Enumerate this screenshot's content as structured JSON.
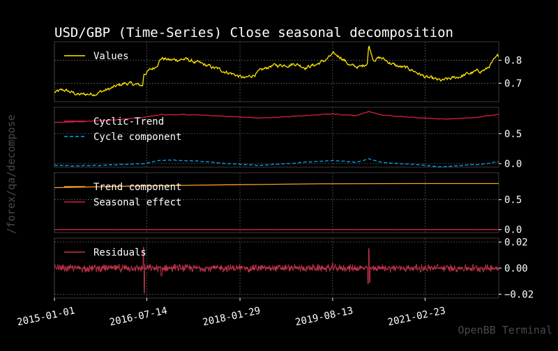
{
  "title": "USD/GBP (Time-Series) Close seasonal decomposition",
  "side_label": "/forex/qa/decompose",
  "watermark": "OpenBB Terminal",
  "colors": {
    "background": "#000000",
    "axes_frame": "#3a3a3a",
    "grid": "#5a5a5a",
    "text": "#ffffff",
    "muted_text": "#4a4a4a",
    "values": "#ffe600",
    "cyclic_trend": "#d81e42",
    "cycle": "#00a8f0",
    "trend": "#ff9e21",
    "seasonal": "#d81e42",
    "residuals": "#c8334a"
  },
  "chart_data": [
    {
      "type": "line",
      "panel": "values",
      "x_range": [
        "2015-01-01",
        "2022-05-15"
      ],
      "x_ticks": [
        "2015-01-01",
        "2016-07-14",
        "2018-01-29",
        "2019-08-13",
        "2021-02-23"
      ],
      "ylim": [
        0.62,
        0.88
      ],
      "y_ticks": [
        0.7,
        0.8
      ],
      "y_tick_labels": [
        "0.7",
        "0.8"
      ],
      "grid": true,
      "legend": "top-left",
      "series": [
        {
          "name": "Values",
          "style": "solid",
          "x": [
            "2015-01-01",
            "2015-03-01",
            "2015-06-01",
            "2015-09-01",
            "2015-12-01",
            "2016-03-01",
            "2016-06-20",
            "2016-06-24",
            "2016-09-01",
            "2016-10-10",
            "2016-12-01",
            "2017-03-01",
            "2017-06-01",
            "2017-09-01",
            "2017-12-01",
            "2018-03-01",
            "2018-05-15",
            "2018-08-01",
            "2018-11-01",
            "2019-01-01",
            "2019-03-01",
            "2019-05-01",
            "2019-07-01",
            "2019-08-13",
            "2019-10-01",
            "2019-12-01",
            "2020-02-01",
            "2020-03-10",
            "2020-03-19",
            "2020-04-15",
            "2020-06-01",
            "2020-09-01",
            "2020-12-01",
            "2021-03-01",
            "2021-06-01",
            "2021-09-01",
            "2021-12-01",
            "2022-03-01",
            "2022-05-15"
          ],
          "values": [
            0.66,
            0.67,
            0.65,
            0.655,
            0.675,
            0.7,
            0.69,
            0.74,
            0.77,
            0.81,
            0.8,
            0.805,
            0.785,
            0.765,
            0.745,
            0.72,
            0.745,
            0.775,
            0.78,
            0.785,
            0.77,
            0.78,
            0.8,
            0.825,
            0.815,
            0.775,
            0.77,
            0.79,
            0.865,
            0.805,
            0.81,
            0.775,
            0.76,
            0.725,
            0.71,
            0.725,
            0.745,
            0.76,
            0.82
          ]
        }
      ]
    },
    {
      "type": "line",
      "panel": "cyclic",
      "x_range": [
        "2015-01-01",
        "2022-05-15"
      ],
      "ylim": [
        -0.06,
        0.94
      ],
      "y_ticks": [
        0.0,
        0.5
      ],
      "y_tick_labels": [
        "0.0",
        "0.5"
      ],
      "grid": true,
      "legend": "top-left",
      "series": [
        {
          "name": "Cyclic-Trend",
          "style": "solid",
          "x": [
            "2015-01-01",
            "2015-06-01",
            "2016-01-01",
            "2016-06-24",
            "2016-10-10",
            "2017-06-01",
            "2018-01-01",
            "2018-06-01",
            "2019-01-01",
            "2019-08-13",
            "2020-01-01",
            "2020-03-19",
            "2020-06-01",
            "2021-01-01",
            "2021-06-01",
            "2022-01-01",
            "2022-05-15"
          ],
          "values": [
            0.69,
            0.7,
            0.73,
            0.77,
            0.82,
            0.81,
            0.78,
            0.76,
            0.79,
            0.83,
            0.8,
            0.87,
            0.81,
            0.77,
            0.74,
            0.77,
            0.82
          ]
        },
        {
          "name": "Cycle component",
          "style": "dashed",
          "x": [
            "2015-01-01",
            "2015-06-01",
            "2016-01-01",
            "2016-06-24",
            "2016-10-10",
            "2017-06-01",
            "2018-01-01",
            "2018-06-01",
            "2019-01-01",
            "2019-08-13",
            "2020-01-01",
            "2020-03-19",
            "2020-06-01",
            "2021-01-01",
            "2021-06-01",
            "2022-01-01",
            "2022-05-15"
          ],
          "values": [
            -0.03,
            -0.04,
            -0.02,
            0.0,
            0.06,
            0.04,
            -0.01,
            -0.03,
            0.01,
            0.05,
            0.02,
            0.08,
            0.02,
            -0.02,
            -0.05,
            -0.02,
            0.03
          ]
        }
      ]
    },
    {
      "type": "line",
      "panel": "trend",
      "x_range": [
        "2015-01-01",
        "2022-05-15"
      ],
      "ylim": [
        -0.05,
        0.95
      ],
      "y_ticks": [
        0.0,
        0.5
      ],
      "y_tick_labels": [
        "0.0",
        "0.5"
      ],
      "grid": true,
      "legend": "top-left",
      "series": [
        {
          "name": "Trend component",
          "style": "solid",
          "x": [
            "2015-01-01",
            "2016-06-01",
            "2018-01-01",
            "2019-06-01",
            "2021-01-01",
            "2022-05-15"
          ],
          "values": [
            0.7,
            0.73,
            0.75,
            0.765,
            0.77,
            0.77
          ]
        },
        {
          "name": "Seasonal effect",
          "style": "solid",
          "x": [
            "2015-01-01",
            "2022-05-15"
          ],
          "values": [
            0.0,
            0.0
          ]
        }
      ]
    },
    {
      "type": "line",
      "panel": "residuals",
      "x_range": [
        "2015-01-01",
        "2022-05-15"
      ],
      "ylim": [
        -0.023,
        0.023
      ],
      "y_ticks": [
        -0.02,
        0.0,
        0.02
      ],
      "y_tick_labels": [
        "−0.02",
        "0.00",
        "0.02"
      ],
      "grid": true,
      "legend": "top-left",
      "series": [
        {
          "name": "Residuals",
          "style": "solid",
          "x": [
            "2015-01-01",
            "2016-06-20",
            "2016-06-24",
            "2016-06-28",
            "2016-10-10",
            "2019-08-13",
            "2020-03-16",
            "2020-03-19",
            "2020-03-24",
            "2022-05-15"
          ],
          "values": [
            0.0,
            0.0,
            0.016,
            -0.019,
            -0.006,
            0.004,
            -0.012,
            0.015,
            -0.011,
            0.0
          ],
          "noise_amplitude": 0.003
        }
      ]
    }
  ]
}
